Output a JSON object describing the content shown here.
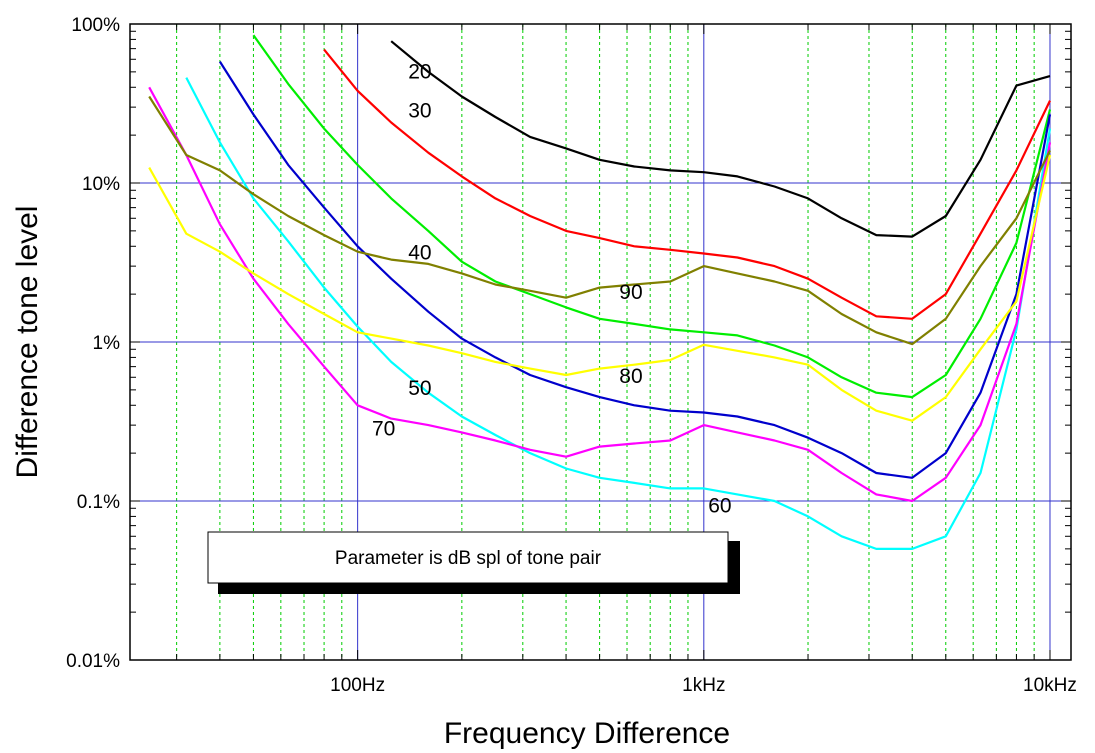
{
  "chart_data": {
    "type": "line",
    "title": "",
    "xlabel": "Frequency Difference",
    "ylabel": "Difference tone level",
    "xscale": "log",
    "yscale": "log",
    "xlim": [
      22,
      11500
    ],
    "ylim": [
      0.01,
      100
    ],
    "grid": true,
    "x_ticks": [
      {
        "value": 100,
        "label": "100Hz"
      },
      {
        "value": 1000,
        "label": "1kHz"
      },
      {
        "value": 10000,
        "label": "10kHz"
      }
    ],
    "y_ticks": [
      {
        "value": 100,
        "label": "100%"
      },
      {
        "value": 10,
        "label": "10%"
      },
      {
        "value": 1,
        "label": "1%"
      },
      {
        "value": 0.1,
        "label": "0.1%"
      },
      {
        "value": 0.01,
        "label": "0.01%"
      }
    ],
    "annotation": "Parameter is dB spl of tone pair",
    "series": [
      {
        "name": "20",
        "color": "#000000",
        "label_at": [
          140,
          51
        ],
        "x": [
          125,
          160,
          200,
          250,
          315,
          400,
          500,
          630,
          800,
          1000,
          1250,
          1600,
          2000,
          2500,
          3150,
          4000,
          5000,
          6300,
          8000,
          10000
        ],
        "y": [
          78,
          50,
          35,
          26,
          19.5,
          16.5,
          14,
          12.7,
          12,
          11.7,
          11,
          9.5,
          8,
          6,
          4.7,
          4.6,
          6.2,
          14,
          41,
          47
        ]
      },
      {
        "name": "30",
        "color": "#ff0000",
        "label_at": [
          140,
          29
        ],
        "x": [
          80,
          100,
          125,
          160,
          200,
          250,
          315,
          400,
          500,
          630,
          800,
          1000,
          1250,
          1600,
          2000,
          2500,
          3150,
          4000,
          5000,
          6300,
          8000,
          10000
        ],
        "y": [
          69,
          38,
          24,
          15.5,
          11,
          8,
          6.2,
          5,
          4.5,
          4,
          3.8,
          3.6,
          3.4,
          3,
          2.5,
          1.9,
          1.45,
          1.4,
          2,
          4.8,
          12,
          33
        ]
      },
      {
        "name": "40",
        "color": "#00ee00",
        "label_at": [
          140,
          3.7
        ],
        "x": [
          50,
          63,
          80,
          100,
          125,
          160,
          200,
          250,
          315,
          400,
          500,
          630,
          800,
          1000,
          1250,
          1600,
          2000,
          2500,
          3150,
          4000,
          5000,
          6300,
          8000,
          10000
        ],
        "y": [
          85,
          42,
          22,
          13,
          8,
          5,
          3.2,
          2.4,
          2,
          1.65,
          1.4,
          1.3,
          1.2,
          1.15,
          1.1,
          0.95,
          0.8,
          0.6,
          0.48,
          0.45,
          0.62,
          1.4,
          4.2,
          29
        ]
      },
      {
        "name": "50",
        "color": "#0000cc",
        "label_at": [
          140,
          0.52
        ],
        "x": [
          40,
          50,
          63,
          80,
          100,
          125,
          160,
          200,
          250,
          315,
          400,
          500,
          630,
          800,
          1000,
          1250,
          1600,
          2000,
          2500,
          3150,
          4000,
          5000,
          6300,
          8000,
          10000
        ],
        "y": [
          58,
          27,
          13,
          7,
          4,
          2.5,
          1.55,
          1.05,
          0.8,
          0.62,
          0.52,
          0.45,
          0.4,
          0.37,
          0.36,
          0.34,
          0.3,
          0.25,
          0.2,
          0.15,
          0.14,
          0.2,
          0.48,
          2,
          27
        ]
      },
      {
        "name": "60",
        "color": "#00ffff",
        "label_at": [
          1030,
          0.095
        ],
        "x": [
          32,
          40,
          50,
          63,
          80,
          100,
          125,
          160,
          200,
          250,
          315,
          400,
          500,
          630,
          800,
          1000,
          1250,
          1600,
          2000,
          2500,
          3150,
          4000,
          5000,
          6300,
          8000,
          10000
        ],
        "y": [
          46,
          18,
          8,
          4.3,
          2.2,
          1.25,
          0.75,
          0.48,
          0.34,
          0.26,
          0.2,
          0.16,
          0.14,
          0.13,
          0.12,
          0.12,
          0.11,
          0.1,
          0.08,
          0.06,
          0.05,
          0.05,
          0.06,
          0.15,
          1.2,
          22
        ]
      },
      {
        "name": "70",
        "color": "#ff00ff",
        "label_at": [
          110,
          0.29
        ],
        "x": [
          25,
          32,
          40,
          50,
          63,
          80,
          100,
          125,
          160,
          200,
          250,
          315,
          400,
          500,
          630,
          800,
          1000,
          1250,
          1600,
          2000,
          2500,
          3150,
          4000,
          5000,
          6300,
          8000,
          10000
        ],
        "y": [
          40,
          15,
          5.5,
          2.5,
          1.3,
          0.7,
          0.4,
          0.33,
          0.3,
          0.27,
          0.24,
          0.21,
          0.19,
          0.22,
          0.23,
          0.24,
          0.3,
          0.27,
          0.24,
          0.21,
          0.15,
          0.11,
          0.1,
          0.14,
          0.3,
          1.3,
          18
        ]
      },
      {
        "name": "80",
        "color": "#ffff00",
        "label_at": [
          570,
          0.62
        ],
        "x": [
          25,
          32,
          40,
          50,
          63,
          80,
          100,
          125,
          160,
          200,
          250,
          315,
          400,
          500,
          630,
          800,
          1000,
          1250,
          1600,
          2000,
          2500,
          3150,
          4000,
          5000,
          6300,
          8000,
          10000
        ],
        "y": [
          12.5,
          4.8,
          3.7,
          2.7,
          2,
          1.5,
          1.15,
          1.05,
          0.95,
          0.85,
          0.75,
          0.68,
          0.62,
          0.68,
          0.72,
          0.77,
          0.96,
          0.88,
          0.8,
          0.72,
          0.5,
          0.37,
          0.32,
          0.45,
          0.9,
          1.8,
          15
        ]
      },
      {
        "name": "90",
        "color": "#808000",
        "label_at": [
          570,
          2.1
        ],
        "x": [
          25,
          32,
          40,
          50,
          63,
          80,
          100,
          125,
          160,
          200,
          250,
          315,
          400,
          500,
          630,
          800,
          1000,
          1250,
          1600,
          2000,
          2500,
          3150,
          4000,
          5000,
          6300,
          8000,
          10000
        ],
        "y": [
          35,
          15,
          12,
          8.5,
          6.2,
          4.7,
          3.7,
          3.3,
          3.1,
          2.7,
          2.3,
          2.1,
          1.9,
          2.2,
          2.3,
          2.4,
          3,
          2.7,
          2.4,
          2.1,
          1.5,
          1.15,
          0.97,
          1.4,
          3,
          6,
          16
        ]
      }
    ]
  }
}
